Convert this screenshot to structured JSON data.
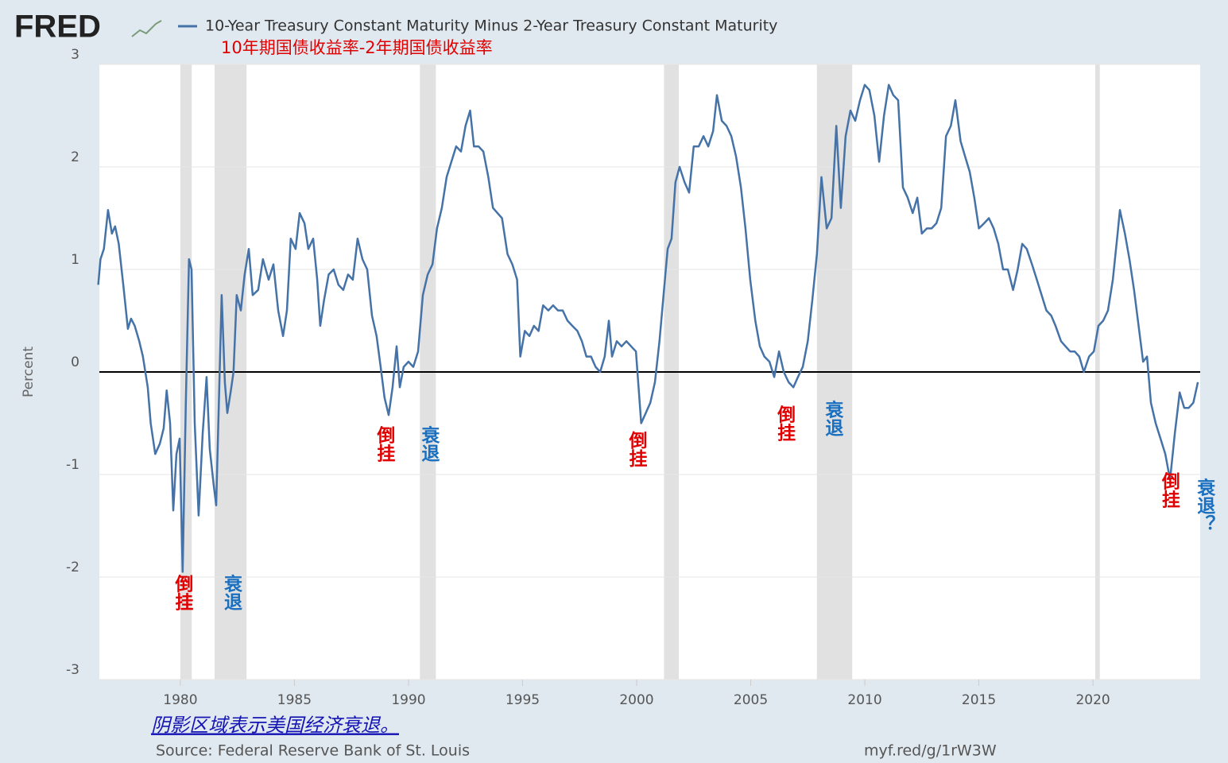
{
  "chart_data": {
    "type": "line",
    "logo": "FRED",
    "title": "10-Year Treasury Constant Maturity Minus 2-Year Treasury Constant Maturity",
    "subtitle": "10年期国债收益率-2年期国债收益率",
    "y_label": "Percent",
    "note": "阴影区域表示美国经济衰退。",
    "source": "Source: Federal Reserve Bank of St. Louis",
    "link": "myf.red/g/1rW3W",
    "xlim": [
      1976.45,
      2024.7
    ],
    "xticks": [
      1980,
      1985,
      1990,
      1995,
      2000,
      2005,
      2010,
      2015,
      2020
    ],
    "ylim": [
      -3,
      3
    ],
    "yticks": [
      -3,
      -2,
      -1,
      0,
      1,
      2,
      3
    ],
    "grid": true,
    "recession_color": "#e1e1e1",
    "recessions": [
      [
        1980.0,
        1980.5
      ],
      [
        1981.5,
        1982.9
      ],
      [
        1990.5,
        1991.2
      ],
      [
        2001.2,
        2001.85
      ],
      [
        2007.9,
        2009.45
      ],
      [
        2020.1,
        2020.3
      ]
    ],
    "x": [
      1976.4,
      1976.5,
      1976.65,
      1976.83,
      1977.0,
      1977.14,
      1977.3,
      1977.5,
      1977.7,
      1977.84,
      1978.0,
      1978.2,
      1978.36,
      1978.57,
      1978.7,
      1978.9,
      1979.1,
      1979.27,
      1979.4,
      1979.55,
      1979.69,
      1979.83,
      1979.97,
      1980.1,
      1980.24,
      1980.38,
      1980.49,
      1980.63,
      1980.8,
      1980.98,
      1981.15,
      1981.29,
      1981.46,
      1981.57,
      1981.7,
      1981.81,
      1981.95,
      1982.06,
      1982.2,
      1982.33,
      1982.47,
      1982.65,
      1982.82,
      1983.0,
      1983.17,
      1983.41,
      1983.62,
      1983.87,
      1984.08,
      1984.29,
      1984.5,
      1984.67,
      1984.84,
      1985.05,
      1985.23,
      1985.44,
      1985.61,
      1985.82,
      1986.0,
      1986.13,
      1986.3,
      1986.5,
      1986.72,
      1986.93,
      1987.14,
      1987.35,
      1987.56,
      1987.77,
      1987.98,
      1988.19,
      1988.4,
      1988.6,
      1988.78,
      1988.95,
      1989.13,
      1989.3,
      1989.48,
      1989.62,
      1989.79,
      1990.0,
      1990.21,
      1990.42,
      1990.63,
      1990.84,
      1991.05,
      1991.25,
      1991.46,
      1991.67,
      1991.88,
      1992.09,
      1992.3,
      1992.5,
      1992.7,
      1992.87,
      1993.07,
      1993.28,
      1993.5,
      1993.7,
      1993.9,
      1994.1,
      1994.34,
      1994.55,
      1994.76,
      1994.9,
      1995.1,
      1995.3,
      1995.5,
      1995.7,
      1995.9,
      1996.13,
      1996.34,
      1996.55,
      1996.76,
      1996.97,
      1997.18,
      1997.4,
      1997.6,
      1997.8,
      1998.0,
      1998.2,
      1998.4,
      1998.6,
      1998.78,
      1998.92,
      1999.13,
      1999.34,
      1999.55,
      1999.76,
      1999.97,
      2000.1,
      2000.2,
      2000.4,
      2000.6,
      2000.8,
      2001.0,
      2001.2,
      2001.36,
      2001.53,
      2001.7,
      2001.88,
      2002.1,
      2002.3,
      2002.5,
      2002.72,
      2002.93,
      2003.14,
      2003.35,
      2003.52,
      2003.73,
      2003.94,
      2004.15,
      2004.36,
      2004.57,
      2004.77,
      2004.98,
      2005.2,
      2005.4,
      2005.6,
      2005.82,
      2006.03,
      2006.24,
      2006.45,
      2006.66,
      2006.87,
      2007.07,
      2007.28,
      2007.5,
      2007.7,
      2007.9,
      2008.1,
      2008.33,
      2008.54,
      2008.75,
      2008.95,
      2009.16,
      2009.37,
      2009.58,
      2009.79,
      2010.0,
      2010.2,
      2010.42,
      2010.63,
      2010.84,
      2011.05,
      2011.25,
      2011.46,
      2011.67,
      2011.88,
      2012.1,
      2012.3,
      2012.5,
      2012.72,
      2012.93,
      2013.14,
      2013.35,
      2013.56,
      2013.77,
      2013.97,
      2014.2,
      2014.4,
      2014.6,
      2014.8,
      2015.0,
      2015.23,
      2015.44,
      2015.65,
      2015.85,
      2016.06,
      2016.27,
      2016.5,
      2016.7,
      2016.9,
      2017.1,
      2017.33,
      2017.54,
      2017.75,
      2017.96,
      2018.17,
      2018.36,
      2018.6,
      2018.8,
      2019.0,
      2019.2,
      2019.4,
      2019.6,
      2019.83,
      2020.04,
      2020.24,
      2020.45,
      2020.66,
      2020.87,
      2021.08,
      2021.18,
      2021.4,
      2021.6,
      2021.8,
      2022.0,
      2022.2,
      2022.37,
      2022.54,
      2022.75,
      2022.96,
      2023.17,
      2023.38,
      2023.59,
      2023.8,
      2024.0,
      2024.2,
      2024.4,
      2024.6
    ],
    "series": [
      {
        "name": "10-Year Treasury Constant Maturity Minus 2-Year Treasury Constant Maturity",
        "color": "#4572a7",
        "values": [
          0.85,
          1.1,
          1.2,
          1.58,
          1.35,
          1.42,
          1.25,
          0.85,
          0.42,
          0.52,
          0.45,
          0.3,
          0.15,
          -0.15,
          -0.5,
          -0.8,
          -0.7,
          -0.55,
          -0.18,
          -0.5,
          -1.35,
          -0.8,
          -0.65,
          -1.95,
          -0.3,
          1.1,
          1.0,
          -0.5,
          -1.4,
          -0.6,
          -0.05,
          -0.75,
          -1.1,
          -1.3,
          -0.2,
          0.75,
          -0.1,
          -0.4,
          -0.2,
          0.0,
          0.75,
          0.6,
          0.95,
          1.2,
          0.75,
          0.8,
          1.1,
          0.9,
          1.05,
          0.6,
          0.35,
          0.6,
          1.3,
          1.2,
          1.55,
          1.45,
          1.2,
          1.3,
          0.9,
          0.45,
          0.7,
          0.95,
          1.0,
          0.85,
          0.8,
          0.95,
          0.9,
          1.3,
          1.1,
          1.0,
          0.55,
          0.35,
          0.05,
          -0.25,
          -0.42,
          -0.15,
          0.25,
          -0.15,
          0.05,
          0.1,
          0.05,
          0.2,
          0.75,
          0.95,
          1.05,
          1.4,
          1.6,
          1.9,
          2.05,
          2.2,
          2.15,
          2.4,
          2.55,
          2.2,
          2.2,
          2.15,
          1.9,
          1.6,
          1.55,
          1.5,
          1.15,
          1.05,
          0.9,
          0.15,
          0.4,
          0.35,
          0.45,
          0.4,
          0.65,
          0.6,
          0.65,
          0.6,
          0.6,
          0.5,
          0.45,
          0.4,
          0.3,
          0.15,
          0.15,
          0.05,
          0.0,
          0.15,
          0.5,
          0.15,
          0.3,
          0.25,
          0.3,
          0.25,
          0.2,
          -0.2,
          -0.5,
          -0.4,
          -0.3,
          -0.1,
          0.3,
          0.8,
          1.2,
          1.3,
          1.85,
          2.0,
          1.85,
          1.75,
          2.2,
          2.2,
          2.3,
          2.2,
          2.35,
          2.7,
          2.45,
          2.4,
          2.3,
          2.1,
          1.8,
          1.4,
          0.9,
          0.5,
          0.25,
          0.15,
          0.1,
          -0.05,
          0.2,
          0.0,
          -0.1,
          -0.15,
          -0.05,
          0.05,
          0.3,
          0.7,
          1.15,
          1.9,
          1.4,
          1.5,
          2.4,
          1.6,
          2.3,
          2.55,
          2.45,
          2.65,
          2.8,
          2.75,
          2.5,
          2.05,
          2.5,
          2.8,
          2.7,
          2.65,
          1.8,
          1.7,
          1.55,
          1.7,
          1.35,
          1.4,
          1.4,
          1.45,
          1.6,
          2.3,
          2.4,
          2.65,
          2.25,
          2.1,
          1.95,
          1.7,
          1.4,
          1.45,
          1.5,
          1.4,
          1.25,
          1.0,
          1.0,
          0.8,
          1.0,
          1.25,
          1.2,
          1.05,
          0.9,
          0.75,
          0.6,
          0.55,
          0.45,
          0.3,
          0.25,
          0.2,
          0.2,
          0.15,
          0.0,
          0.15,
          0.2,
          0.45,
          0.5,
          0.6,
          0.9,
          1.35,
          1.58,
          1.35,
          1.1,
          0.8,
          0.45,
          0.1,
          0.15,
          -0.3,
          -0.5,
          -0.65,
          -0.8,
          -1.05,
          -0.6,
          -0.2,
          -0.35,
          -0.35,
          -0.3,
          -0.1
        ]
      }
    ],
    "annotations": [
      {
        "text": "倒挂",
        "x": 1980.05,
        "y": -2.15,
        "color": "#e00000"
      },
      {
        "text": "衰退",
        "x": 1982.2,
        "y": -2.15,
        "color": "#1a6fbf"
      },
      {
        "text": "倒挂",
        "x": 1988.9,
        "y": -0.7,
        "color": "#e00000"
      },
      {
        "text": "衰退",
        "x": 1990.85,
        "y": -0.7,
        "color": "#1a6fbf"
      },
      {
        "text": "倒挂",
        "x": 1999.95,
        "y": -0.75,
        "color": "#e00000"
      },
      {
        "text": "倒挂",
        "x": 2006.45,
        "y": -0.5,
        "color": "#e00000"
      },
      {
        "text": "衰退",
        "x": 2008.55,
        "y": -0.45,
        "color": "#1a6fbf"
      },
      {
        "text": "倒挂",
        "x": 2023.3,
        "y": -1.15,
        "color": "#e00000"
      },
      {
        "text": "衰退？",
        "x": 2024.85,
        "y": -1.3,
        "color": "#1a6fbf"
      }
    ]
  }
}
